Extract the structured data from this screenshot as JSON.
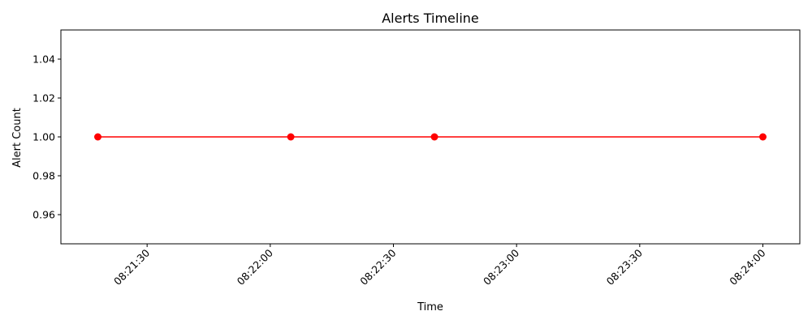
{
  "chart_data": {
    "type": "line",
    "title": "Alerts Timeline",
    "xlabel": "Time",
    "ylabel": "Alert Count",
    "x_ticks": [
      "08:21:30",
      "08:22:00",
      "08:22:30",
      "08:23:00",
      "08:23:30",
      "08:24:00"
    ],
    "x_tick_values": [
      "08:21:30",
      "08:22:00",
      "08:22:30",
      "08:23:00",
      "08:23:30",
      "08:24:00"
    ],
    "y_ticks": [
      "0.96",
      "0.98",
      "1.00",
      "1.02",
      "1.04"
    ],
    "y_tick_values": [
      0.96,
      0.98,
      1.0,
      1.02,
      1.04
    ],
    "xlim": [
      "08:21:09",
      "08:24:09"
    ],
    "ylim": [
      0.945,
      1.055
    ],
    "series": [
      {
        "color": "#ff0000",
        "x": [
          "08:21:18",
          "08:22:05",
          "08:22:40",
          "08:24:00"
        ],
        "y": [
          1,
          1,
          1,
          1
        ]
      }
    ],
    "grid": false,
    "x_tick_rotation": 45
  }
}
